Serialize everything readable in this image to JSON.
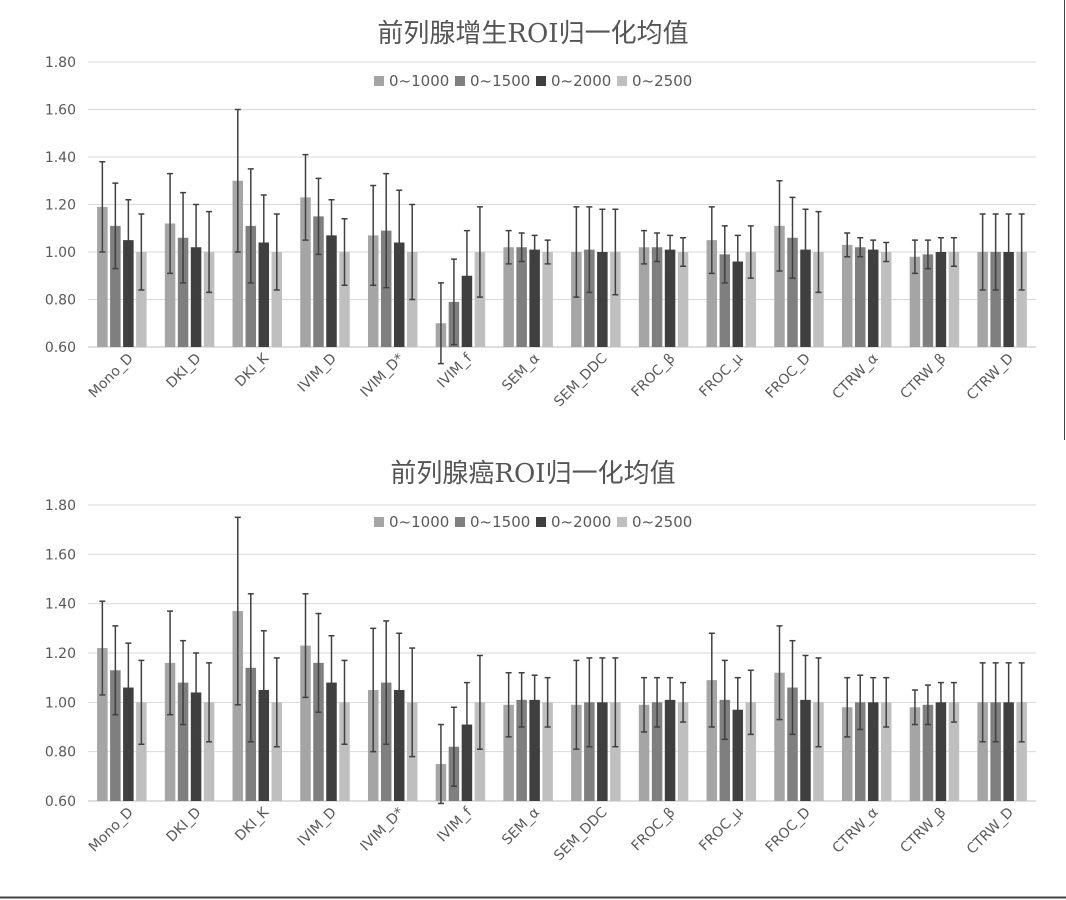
{
  "chart_data": [
    {
      "type": "bar",
      "title": "前列腺增生ROI归一化均值",
      "categories": [
        "Mono_D",
        "DKI_D",
        "DKI_K",
        "IVIM_D",
        "IVIM_D*",
        "IVIM_f",
        "SEM_α",
        "SEM_DDC",
        "FROC_β",
        "FROC_μ",
        "FROC_D",
        "CTRW_α",
        "CTRW_β",
        "CTRW_D"
      ],
      "y_ticks": [
        "0.60",
        "0.80",
        "1.00",
        "1.20",
        "1.40",
        "1.60",
        "1.80"
      ],
      "ylim": [
        0.6,
        1.8
      ],
      "grid": true,
      "legend_position": "top",
      "error_bars": true,
      "series": [
        {
          "name": "0~1000",
          "color": "#a5a5a5",
          "values": [
            1.19,
            1.12,
            1.3,
            1.23,
            1.07,
            0.7,
            1.02,
            1.0,
            1.02,
            1.05,
            1.11,
            1.03,
            0.98,
            1.0
          ],
          "errors": [
            0.19,
            0.21,
            0.3,
            0.18,
            0.21,
            0.17,
            0.07,
            0.19,
            0.07,
            0.14,
            0.19,
            0.05,
            0.07,
            0.16
          ]
        },
        {
          "name": "0~1500",
          "color": "#7f7f7f",
          "values": [
            1.11,
            1.06,
            1.11,
            1.15,
            1.09,
            0.79,
            1.02,
            1.01,
            1.02,
            0.99,
            1.06,
            1.02,
            0.99,
            1.0
          ],
          "errors": [
            0.18,
            0.19,
            0.24,
            0.16,
            0.24,
            0.18,
            0.06,
            0.18,
            0.06,
            0.12,
            0.17,
            0.04,
            0.06,
            0.16
          ]
        },
        {
          "name": "0~2000",
          "color": "#3f3f3f",
          "values": [
            1.05,
            1.02,
            1.04,
            1.07,
            1.04,
            0.9,
            1.01,
            1.0,
            1.01,
            0.96,
            1.01,
            1.01,
            1.0,
            1.0
          ],
          "errors": [
            0.17,
            0.18,
            0.2,
            0.15,
            0.22,
            0.19,
            0.06,
            0.18,
            0.06,
            0.11,
            0.17,
            0.04,
            0.06,
            0.16
          ]
        },
        {
          "name": "0~2500",
          "color": "#bfbfbf",
          "values": [
            1.0,
            1.0,
            1.0,
            1.0,
            1.0,
            1.0,
            1.0,
            1.0,
            1.0,
            1.0,
            1.0,
            1.0,
            1.0,
            1.0
          ],
          "errors": [
            0.16,
            0.17,
            0.16,
            0.14,
            0.2,
            0.19,
            0.05,
            0.18,
            0.06,
            0.11,
            0.17,
            0.04,
            0.06,
            0.16
          ]
        }
      ]
    },
    {
      "type": "bar",
      "title": "前列腺癌ROI归一化均值",
      "categories": [
        "Mono_D",
        "DKI_D",
        "DKI_K",
        "IVIM_D",
        "IVIM_D*",
        "IVIM_f",
        "SEM_α",
        "SEM_DDC",
        "FROC_β",
        "FROC_μ",
        "FROC_D",
        "CTRW_α",
        "CTRW_β",
        "CTRW_D"
      ],
      "y_ticks": [
        "0.60",
        "0.80",
        "1.00",
        "1.20",
        "1.40",
        "1.60",
        "1.80"
      ],
      "ylim": [
        0.6,
        1.8
      ],
      "grid": true,
      "legend_position": "top",
      "error_bars": true,
      "series": [
        {
          "name": "0~1000",
          "color": "#a5a5a5",
          "values": [
            1.22,
            1.16,
            1.37,
            1.23,
            1.05,
            0.75,
            0.99,
            0.99,
            0.99,
            1.09,
            1.12,
            0.98,
            0.98,
            1.0
          ],
          "errors": [
            0.19,
            0.21,
            0.38,
            0.21,
            0.25,
            0.16,
            0.13,
            0.18,
            0.11,
            0.19,
            0.19,
            0.12,
            0.07,
            0.16
          ]
        },
        {
          "name": "0~1500",
          "color": "#7f7f7f",
          "values": [
            1.13,
            1.08,
            1.14,
            1.16,
            1.08,
            0.82,
            1.01,
            1.0,
            1.0,
            1.01,
            1.06,
            1.0,
            0.99,
            1.0
          ],
          "errors": [
            0.18,
            0.17,
            0.3,
            0.2,
            0.25,
            0.16,
            0.11,
            0.18,
            0.1,
            0.16,
            0.19,
            0.11,
            0.08,
            0.16
          ]
        },
        {
          "name": "0~2000",
          "color": "#3f3f3f",
          "values": [
            1.06,
            1.04,
            1.05,
            1.08,
            1.05,
            0.91,
            1.01,
            1.0,
            1.01,
            0.97,
            1.01,
            1.0,
            1.0,
            1.0
          ],
          "errors": [
            0.18,
            0.16,
            0.24,
            0.19,
            0.23,
            0.17,
            0.1,
            0.18,
            0.09,
            0.13,
            0.18,
            0.1,
            0.08,
            0.16
          ]
        },
        {
          "name": "0~2500",
          "color": "#bfbfbf",
          "values": [
            1.0,
            1.0,
            1.0,
            1.0,
            1.0,
            1.0,
            1.0,
            1.0,
            1.0,
            1.0,
            1.0,
            1.0,
            1.0,
            1.0
          ],
          "errors": [
            0.17,
            0.16,
            0.18,
            0.17,
            0.22,
            0.19,
            0.1,
            0.18,
            0.08,
            0.13,
            0.18,
            0.1,
            0.08,
            0.16
          ]
        }
      ]
    }
  ]
}
